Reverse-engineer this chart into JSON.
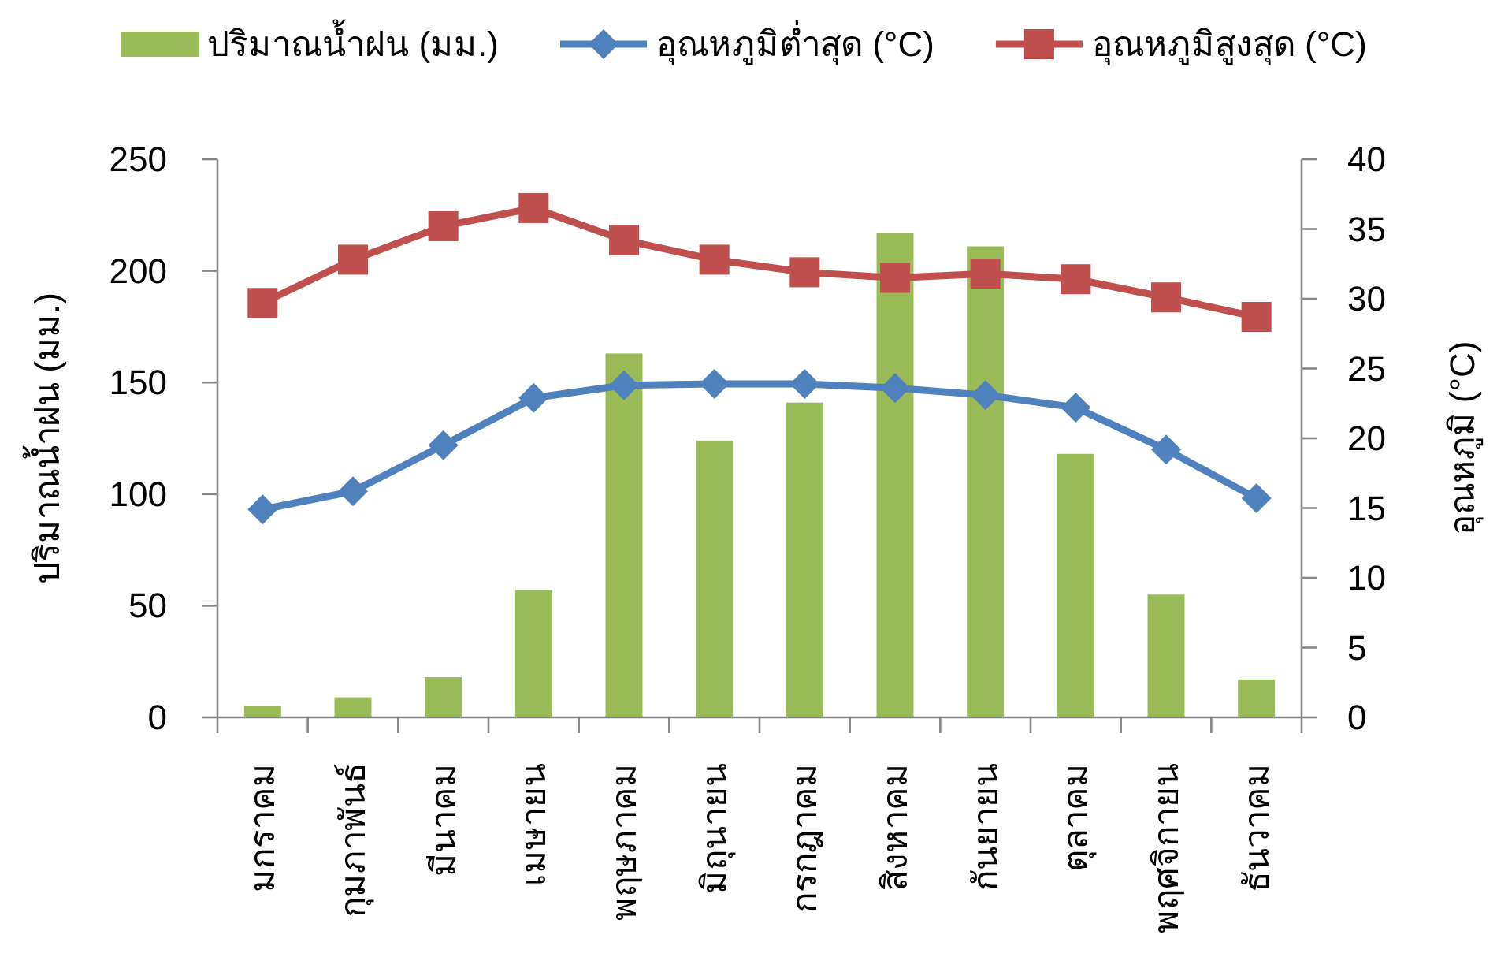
{
  "chart_data": {
    "type": "bar",
    "categories": [
      "มกราคม",
      "กุมภาพันธ์",
      "มีนาคม",
      "เมษายน",
      "พฤษภาคม",
      "มิถุนายน",
      "กรกฎาคม",
      "สิงหาคม",
      "กันยายน",
      "ตุลาคม",
      "พฤศจิกายน",
      "ธันวาคม"
    ],
    "ylabel": "ปริมาณน้ำฝน (มม.)",
    "y2label": "อุณหภูมิ (°C)",
    "ylim": [
      0,
      250
    ],
    "yticks": [
      0,
      50,
      100,
      150,
      200,
      250
    ],
    "y2lim": [
      0,
      40
    ],
    "y2ticks": [
      0,
      5,
      10,
      15,
      20,
      25,
      30,
      35,
      40
    ],
    "legend": "top",
    "series": [
      {
        "name": "ปริมาณน้ำฝน (มม.)",
        "color": "#9bbb59",
        "values": [
          5,
          9,
          18,
          57,
          163,
          124,
          141,
          217,
          211,
          118,
          55,
          17
        ]
      },
      {
        "name": "อุณหภูมิต่ำสุด (°C)",
        "type": "line",
        "axis": "y2",
        "marker": "diamond",
        "color": "#4f81bd",
        "values": [
          14.9,
          16.2,
          19.5,
          22.9,
          23.8,
          23.9,
          23.9,
          23.6,
          23.1,
          22.2,
          19.2,
          15.7
        ]
      },
      {
        "name": "อุณหภูมิสูงสุด (°C)",
        "type": "line",
        "axis": "y2",
        "marker": "square",
        "color": "#c0504d",
        "values": [
          29.7,
          32.8,
          35.2,
          36.5,
          34.2,
          32.8,
          31.9,
          31.5,
          31.8,
          31.4,
          30.1,
          28.7
        ]
      }
    ]
  }
}
